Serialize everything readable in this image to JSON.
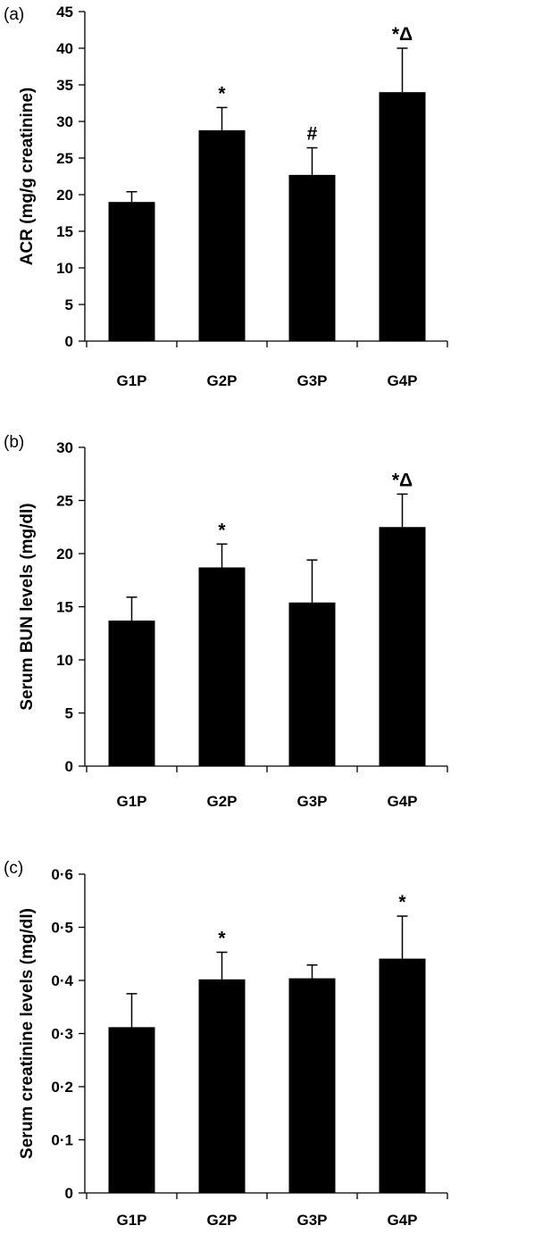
{
  "chart_data": [
    {
      "type": "bar",
      "panel_label": "(a)",
      "ylabel": "ACR (mg/g creatinine)",
      "categories": [
        "G1P",
        "G2P",
        "G3P",
        "G4P"
      ],
      "values": [
        19,
        28.8,
        22.7,
        34
      ],
      "errors": [
        1.4,
        3.1,
        3.7,
        6
      ],
      "significance": [
        "",
        "*",
        "#",
        "*Δ"
      ],
      "ylim": [
        0,
        45
      ],
      "yticks": [
        0,
        5,
        10,
        15,
        20,
        25,
        30,
        35,
        40,
        45
      ],
      "ytick_labels": [
        "0",
        "5",
        "10",
        "15",
        "20",
        "25",
        "30",
        "35",
        "40",
        "45"
      ],
      "bar_color": "#000000",
      "grid": false
    },
    {
      "type": "bar",
      "panel_label": "(b)",
      "ylabel": "Serum BUN levels (mg/dl)",
      "categories": [
        "G1P",
        "G2P",
        "G3P",
        "G4P"
      ],
      "values": [
        13.7,
        18.7,
        15.4,
        22.5
      ],
      "errors": [
        2.2,
        2.2,
        4,
        3.1
      ],
      "significance": [
        "",
        "*",
        "",
        "*Δ"
      ],
      "ylim": [
        0,
        30
      ],
      "yticks": [
        0,
        5,
        10,
        15,
        20,
        25,
        30
      ],
      "ytick_labels": [
        "0",
        "5",
        "10",
        "15",
        "20",
        "25",
        "30"
      ],
      "bar_color": "#000000",
      "grid": false
    },
    {
      "type": "bar",
      "panel_label": "(c)",
      "ylabel": "Serum creatinine levels (mg/dl)",
      "categories": [
        "G1P",
        "G2P",
        "G3P",
        "G4P"
      ],
      "values": [
        0.312,
        0.402,
        0.404,
        0.441
      ],
      "errors": [
        0.063,
        0.051,
        0.025,
        0.08
      ],
      "significance": [
        "",
        "*",
        "",
        "*"
      ],
      "ylim": [
        0,
        0.6
      ],
      "yticks": [
        0,
        0.1,
        0.2,
        0.3,
        0.4,
        0.5,
        0.6
      ],
      "ytick_labels": [
        "0",
        "0·1",
        "0·2",
        "0·3",
        "0·4",
        "0·5",
        "0·6"
      ],
      "bar_color": "#000000",
      "grid": false
    }
  ]
}
